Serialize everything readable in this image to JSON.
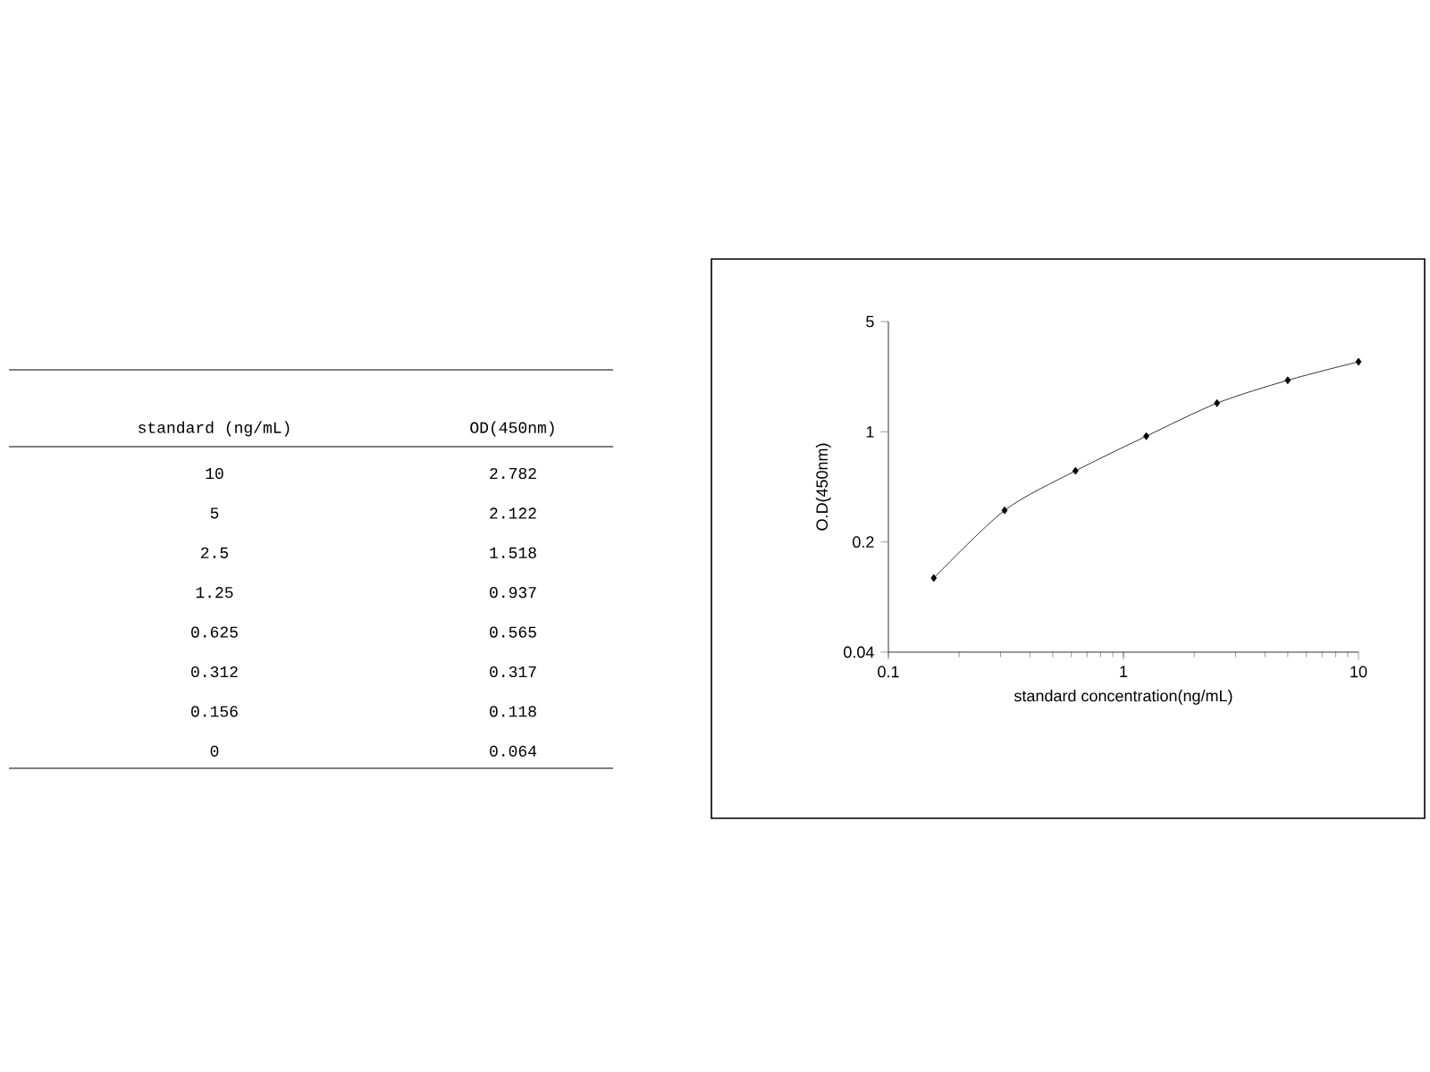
{
  "chart_data": [
    {
      "type": "other",
      "xlabel": "standard (ng/mL)",
      "ylabel": "OD(450nm)",
      "categories": [
        "10",
        "5",
        "2.5",
        "1.25",
        "0.625",
        "0.312",
        "0.156",
        "0"
      ],
      "values": [
        2.782,
        2.122,
        1.518,
        0.937,
        0.565,
        0.317,
        0.118,
        0.064
      ],
      "data_labels": true
    },
    {
      "type": "line",
      "xlabel": "standard concentration(ng/mL)",
      "ylabel": "O.D(450nm)",
      "log": "xy",
      "x": [
        0.156,
        0.312,
        0.625,
        1.25,
        2.5,
        5,
        10
      ],
      "values": [
        0.118,
        0.317,
        0.565,
        0.937,
        1.518,
        2.122,
        2.782
      ],
      "color": "#000000",
      "marker": "diamond",
      "line_style": "solid",
      "grid": false,
      "xlim": [
        0.1,
        10
      ],
      "xticks": [
        0.1,
        1,
        10
      ],
      "ylim": [
        0.04,
        5
      ],
      "yticks": [
        0.04,
        0.2,
        1,
        5
      ]
    }
  ]
}
